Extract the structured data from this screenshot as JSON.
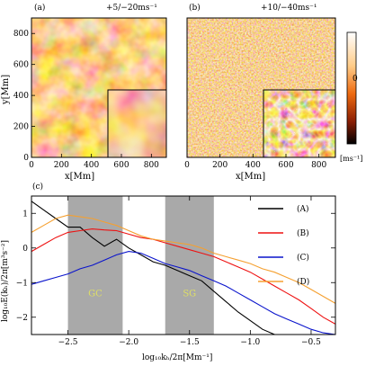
{
  "panel_a": {
    "label": "(a)",
    "range": "+5/−20ms⁻¹",
    "xlabel": "x[Mm]",
    "ylabel": "y[Mm]",
    "xticks": [
      "0",
      "200",
      "400",
      "600",
      "800"
    ],
    "yticks": [
      "0",
      "200",
      "400",
      "600",
      "800"
    ]
  },
  "panel_b": {
    "label": "(b)",
    "range": "+10/−40ms⁻¹",
    "xlabel": "x[Mm]",
    "xticks": [
      "0",
      "200",
      "400",
      "600",
      "800"
    ]
  },
  "colorbar": {
    "zero_label": "0",
    "unit": "[ms⁻¹]"
  },
  "colors": {
    "A": "#000000",
    "B": "#ee1111",
    "C": "#0a14cc",
    "D": "#f5a030",
    "band": "#a9a9a9",
    "band_text": "#dede66"
  },
  "chart_data": {
    "type": "line",
    "panel_label": "(c)",
    "xlabel": "log₁₀kₕ/2π[Mm⁻¹]",
    "ylabel": "log₁₀E(kₕ)/2π[m³s⁻²]",
    "xlim": [
      -2.8,
      -0.3
    ],
    "ylim": [
      -2.5,
      1.5
    ],
    "xticks": [
      -2.5,
      -2.0,
      -1.5,
      -1.0,
      -0.5
    ],
    "xtick_labels": [
      "−2.5",
      "−2.0",
      "−1.5",
      "−1.0",
      "−0.5"
    ],
    "yticks": [
      -2,
      -1,
      0,
      1
    ],
    "ytick_labels": [
      "−2",
      "−1",
      "0",
      "1"
    ],
    "bands": [
      {
        "label": "GC",
        "x0": -2.5,
        "x1": -2.05
      },
      {
        "label": "SG",
        "x0": -1.7,
        "x1": -1.3
      }
    ],
    "legend_position": "top-right",
    "series": [
      {
        "name": "(A)",
        "key": "A",
        "x": [
          -2.8,
          -2.7,
          -2.6,
          -2.5,
          -2.4,
          -2.3,
          -2.2,
          -2.1,
          -2.0,
          -1.9,
          -1.8,
          -1.7,
          -1.6,
          -1.5,
          -1.4,
          -1.3,
          -1.2,
          -1.1,
          -1.0,
          -0.9,
          -0.8
        ],
        "y": [
          1.35,
          1.1,
          0.85,
          0.6,
          0.6,
          0.3,
          0.05,
          0.25,
          0.0,
          -0.2,
          -0.4,
          -0.5,
          -0.65,
          -0.8,
          -0.95,
          -1.25,
          -1.55,
          -1.85,
          -2.1,
          -2.35,
          -2.5
        ]
      },
      {
        "name": "(B)",
        "key": "B",
        "x": [
          -2.8,
          -2.7,
          -2.6,
          -2.5,
          -2.4,
          -2.3,
          -2.2,
          -2.1,
          -2.0,
          -1.9,
          -1.8,
          -1.7,
          -1.6,
          -1.5,
          -1.4,
          -1.3,
          -1.2,
          -1.1,
          -1.0,
          -0.9,
          -0.8,
          -0.7,
          -0.6,
          -0.5,
          -0.4,
          -0.3
        ],
        "y": [
          -0.1,
          0.1,
          0.3,
          0.45,
          0.5,
          0.55,
          0.52,
          0.5,
          0.4,
          0.3,
          0.25,
          0.15,
          0.05,
          -0.05,
          -0.15,
          -0.25,
          -0.4,
          -0.55,
          -0.7,
          -0.9,
          -1.1,
          -1.3,
          -1.5,
          -1.75,
          -2.0,
          -2.2
        ]
      },
      {
        "name": "(C)",
        "key": "C",
        "x": [
          -2.8,
          -2.7,
          -2.6,
          -2.5,
          -2.4,
          -2.3,
          -2.2,
          -2.1,
          -2.0,
          -1.9,
          -1.8,
          -1.7,
          -1.6,
          -1.5,
          -1.4,
          -1.3,
          -1.2,
          -1.1,
          -1.0,
          -0.9,
          -0.8,
          -0.7,
          -0.6,
          -0.5,
          -0.4,
          -0.3
        ],
        "y": [
          -1.05,
          -0.95,
          -0.85,
          -0.75,
          -0.6,
          -0.5,
          -0.35,
          -0.2,
          -0.1,
          -0.15,
          -0.3,
          -0.45,
          -0.55,
          -0.65,
          -0.8,
          -0.95,
          -1.1,
          -1.3,
          -1.5,
          -1.7,
          -1.9,
          -2.05,
          -2.2,
          -2.35,
          -2.45,
          -2.5
        ]
      },
      {
        "name": "(D)",
        "key": "D",
        "x": [
          -2.8,
          -2.7,
          -2.6,
          -2.5,
          -2.4,
          -2.3,
          -2.2,
          -2.1,
          -2.0,
          -1.9,
          -1.8,
          -1.7,
          -1.6,
          -1.5,
          -1.4,
          -1.3,
          -1.2,
          -1.1,
          -1.0,
          -0.9,
          -0.8,
          -0.7,
          -0.6,
          -0.5,
          -0.4,
          -0.3
        ],
        "y": [
          0.45,
          0.65,
          0.85,
          0.95,
          0.9,
          0.85,
          0.75,
          0.65,
          0.5,
          0.35,
          0.25,
          0.2,
          0.15,
          0.1,
          0.0,
          -0.15,
          -0.25,
          -0.35,
          -0.45,
          -0.6,
          -0.7,
          -0.85,
          -1.0,
          -1.2,
          -1.4,
          -1.6
        ]
      }
    ]
  }
}
